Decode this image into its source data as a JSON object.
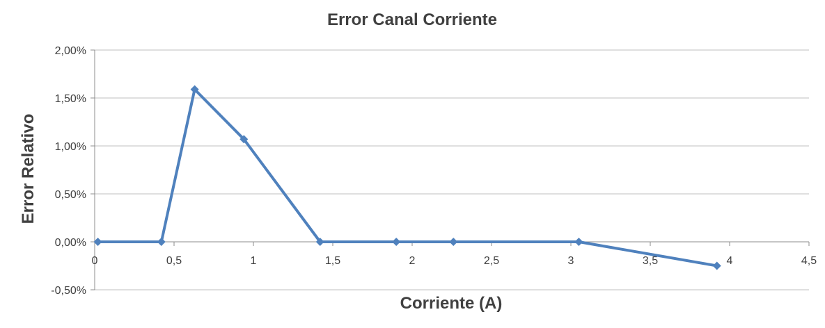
{
  "chart_data": {
    "type": "line",
    "title": "Error Canal Corriente",
    "xlabel": "Corriente (A)",
    "ylabel": "Error Relativo",
    "xlim": [
      0,
      4.5
    ],
    "ylim": [
      -0.5,
      2.0
    ],
    "x_ticks": [
      0,
      0.5,
      1,
      1.5,
      2,
      2.5,
      3,
      3.5,
      4,
      4.5
    ],
    "x_tick_labels": [
      "0",
      "0,5",
      "1",
      "1,5",
      "2",
      "2,5",
      "3",
      "3,5",
      "4",
      "4,5"
    ],
    "y_ticks": [
      -0.5,
      0,
      0.5,
      1.0,
      1.5,
      2.0
    ],
    "y_tick_labels": [
      "-0,50%",
      "0,00%",
      "0,50%",
      "1,00%",
      "1,50%",
      "2,00%"
    ],
    "grid": true,
    "legend": "none",
    "series": [
      {
        "color": "#4f81bd",
        "x": [
          0.02,
          0.42,
          0.63,
          0.94,
          1.42,
          1.9,
          2.26,
          3.05,
          3.92
        ],
        "y": [
          0.0,
          0.0,
          1.59,
          1.07,
          0.0,
          0.0,
          0.0,
          0.0,
          -0.25
        ]
      }
    ]
  }
}
